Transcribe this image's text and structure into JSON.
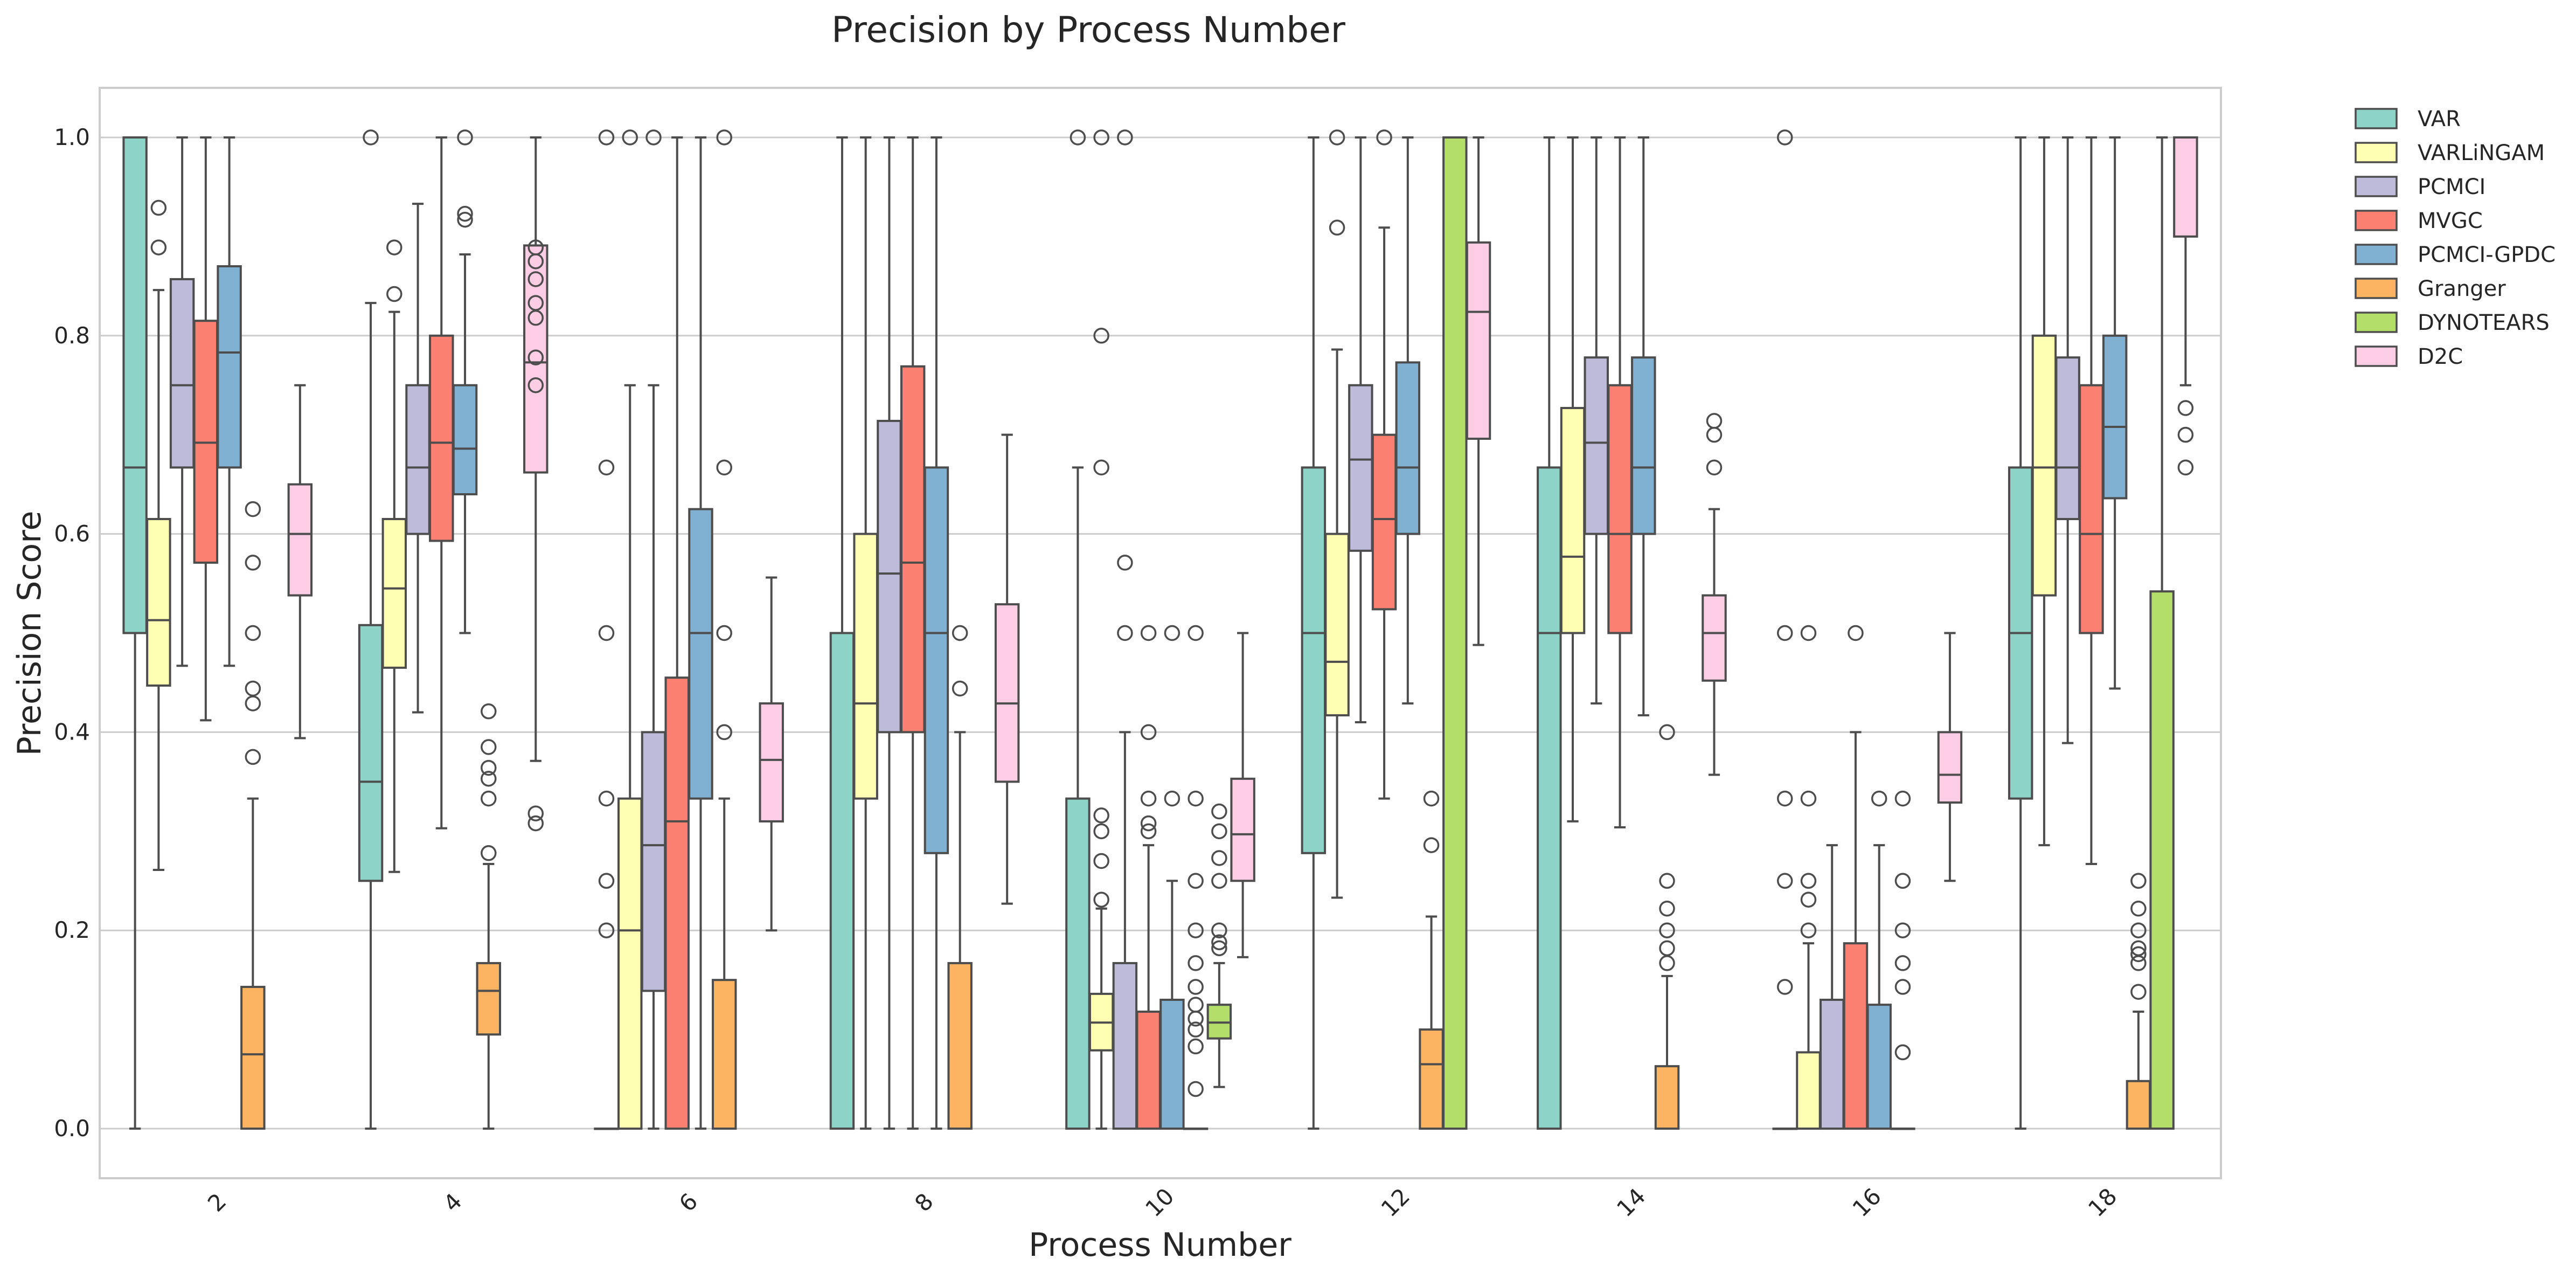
{
  "chart_data": {
    "type": "box",
    "title": "Precision by Process Number",
    "xlabel": "Process Number",
    "ylabel": "Precision Score",
    "ylim": [
      -0.05,
      1.05
    ],
    "yticks": [
      "0.0",
      "0.2",
      "0.4",
      "0.6",
      "0.8",
      "1.0"
    ],
    "categories": [
      "2",
      "4",
      "6",
      "8",
      "10",
      "12",
      "14",
      "16",
      "18"
    ],
    "grid": true,
    "legend_position": "outside-top-right",
    "series": [
      {
        "name": "VAR",
        "color": "#8dd3c7",
        "boxes": [
          {
            "cat": "2",
            "lw": 0,
            "q1": 0.5,
            "med": 0.667,
            "q3": 1.0,
            "uw": 1.0,
            "out": []
          },
          {
            "cat": "4",
            "lw": 0,
            "q1": 0.25,
            "med": 0.35,
            "q3": 0.508,
            "uw": 0.833,
            "out": [
              1.0
            ]
          },
          {
            "cat": "6",
            "lw": 0,
            "q1": 0,
            "med": 0,
            "q3": 0,
            "uw": 0,
            "out": [
              0.2,
              0.25,
              0.333,
              0.5,
              0.667,
              1.0
            ]
          },
          {
            "cat": "8",
            "lw": 0,
            "q1": 0,
            "med": 0,
            "q3": 0.5,
            "uw": 1.0,
            "out": []
          },
          {
            "cat": "10",
            "lw": 0,
            "q1": 0,
            "med": 0,
            "q3": 0.333,
            "uw": 0.667,
            "out": [
              1.0
            ]
          },
          {
            "cat": "12",
            "lw": 0,
            "q1": 0.278,
            "med": 0.5,
            "q3": 0.667,
            "uw": 1.0,
            "out": []
          },
          {
            "cat": "14",
            "lw": 0,
            "q1": 0,
            "med": 0.5,
            "q3": 0.667,
            "uw": 1.0,
            "out": []
          },
          {
            "cat": "16",
            "lw": 0,
            "q1": 0,
            "med": 0,
            "q3": 0,
            "uw": 0,
            "out": [
              0.143,
              0.25,
              0.333,
              0.5,
              1.0
            ]
          },
          {
            "cat": "18",
            "lw": 0,
            "q1": 0.333,
            "med": 0.5,
            "q3": 0.667,
            "uw": 1.0,
            "out": []
          }
        ]
      },
      {
        "name": "VARLiNGAM",
        "color": "#ffffb3",
        "boxes": [
          {
            "cat": "2",
            "lw": 0.261,
            "q1": 0.447,
            "med": 0.513,
            "q3": 0.615,
            "uw": 0.846,
            "out": [
              0.889,
              0.929
            ]
          },
          {
            "cat": "4",
            "lw": 0.259,
            "q1": 0.465,
            "med": 0.545,
            "q3": 0.615,
            "uw": 0.824,
            "out": [
              0.842,
              0.889
            ]
          },
          {
            "cat": "6",
            "lw": 0,
            "q1": 0,
            "med": 0.2,
            "q3": 0.333,
            "uw": 0.75,
            "out": [
              1.0
            ]
          },
          {
            "cat": "8",
            "lw": 0,
            "q1": 0.333,
            "med": 0.429,
            "q3": 0.6,
            "uw": 1.0,
            "out": []
          },
          {
            "cat": "10",
            "lw": 0.0,
            "q1": 0.079,
            "med": 0.107,
            "q3": 0.136,
            "uw": 0.222,
            "out": [
              0.231,
              0.27,
              0.3,
              0.316,
              0.667,
              0.8,
              1.0
            ]
          },
          {
            "cat": "12",
            "lw": 0.233,
            "q1": 0.417,
            "med": 0.471,
            "q3": 0.6,
            "uw": 0.786,
            "out": [
              0.909,
              1.0
            ]
          },
          {
            "cat": "14",
            "lw": 0.31,
            "q1": 0.5,
            "med": 0.577,
            "q3": 0.727,
            "uw": 1.0,
            "out": []
          },
          {
            "cat": "16",
            "lw": 0,
            "q1": 0,
            "med": 0,
            "q3": 0.077,
            "uw": 0.187,
            "out": [
              0.2,
              0.231,
              0.25,
              0.333,
              0.5
            ]
          },
          {
            "cat": "18",
            "lw": 0.286,
            "q1": 0.538,
            "med": 0.667,
            "q3": 0.8,
            "uw": 1.0,
            "out": []
          }
        ]
      },
      {
        "name": "PCMCI",
        "color": "#bebada",
        "boxes": [
          {
            "cat": "2",
            "lw": 0.467,
            "q1": 0.667,
            "med": 0.75,
            "q3": 0.857,
            "uw": 1.0,
            "out": []
          },
          {
            "cat": "4",
            "lw": 0.42,
            "q1": 0.6,
            "med": 0.667,
            "q3": 0.75,
            "uw": 0.933,
            "out": []
          },
          {
            "cat": "6",
            "lw": 0,
            "q1": 0.139,
            "med": 0.286,
            "q3": 0.4,
            "uw": 0.75,
            "out": [
              1.0
            ]
          },
          {
            "cat": "8",
            "lw": 0,
            "q1": 0.4,
            "med": 0.56,
            "q3": 0.714,
            "uw": 1.0,
            "out": []
          },
          {
            "cat": "10",
            "lw": 0,
            "q1": 0,
            "med": 0,
            "q3": 0.167,
            "uw": 0.4,
            "out": [
              0.5,
              0.571,
              1.0
            ]
          },
          {
            "cat": "12",
            "lw": 0.41,
            "q1": 0.583,
            "med": 0.675,
            "q3": 0.75,
            "uw": 1.0,
            "out": []
          },
          {
            "cat": "14",
            "lw": 0.429,
            "q1": 0.6,
            "med": 0.692,
            "q3": 0.778,
            "uw": 1.0,
            "out": []
          },
          {
            "cat": "16",
            "lw": 0,
            "q1": 0,
            "med": 0,
            "q3": 0.13,
            "uw": 0.286,
            "out": []
          },
          {
            "cat": "18",
            "lw": 0.389,
            "q1": 0.615,
            "med": 0.667,
            "q3": 0.778,
            "uw": 1.0,
            "out": []
          }
        ]
      },
      {
        "name": "MVGC",
        "color": "#fb8072",
        "boxes": [
          {
            "cat": "2",
            "lw": 0.412,
            "q1": 0.571,
            "med": 0.692,
            "q3": 0.815,
            "uw": 1.0,
            "out": []
          },
          {
            "cat": "4",
            "lw": 0.303,
            "q1": 0.593,
            "med": 0.692,
            "q3": 0.8,
            "uw": 1.0,
            "out": []
          },
          {
            "cat": "6",
            "lw": 0,
            "q1": 0,
            "med": 0.31,
            "q3": 0.455,
            "uw": 1.0,
            "out": []
          },
          {
            "cat": "8",
            "lw": 0,
            "q1": 0.4,
            "med": 0.571,
            "q3": 0.769,
            "uw": 1.0,
            "out": []
          },
          {
            "cat": "10",
            "lw": 0,
            "q1": 0,
            "med": 0,
            "q3": 0.118,
            "uw": 0.286,
            "out": [
              0.3,
              0.308,
              0.333,
              0.4,
              0.5
            ]
          },
          {
            "cat": "12",
            "lw": 0.333,
            "q1": 0.524,
            "med": 0.615,
            "q3": 0.7,
            "uw": 0.909,
            "out": [
              1.0
            ]
          },
          {
            "cat": "14",
            "lw": 0.304,
            "q1": 0.5,
            "med": 0.6,
            "q3": 0.75,
            "uw": 1.0,
            "out": []
          },
          {
            "cat": "16",
            "lw": 0,
            "q1": 0,
            "med": 0,
            "q3": 0.187,
            "uw": 0.4,
            "out": [
              0.5
            ]
          },
          {
            "cat": "18",
            "lw": 0.267,
            "q1": 0.5,
            "med": 0.6,
            "q3": 0.75,
            "uw": 1.0,
            "out": []
          }
        ]
      },
      {
        "name": "PCMCI-GPDC",
        "color": "#80b1d3",
        "boxes": [
          {
            "cat": "2",
            "lw": 0.467,
            "q1": 0.667,
            "med": 0.783,
            "q3": 0.87,
            "uw": 1.0,
            "out": []
          },
          {
            "cat": "4",
            "lw": 0.5,
            "q1": 0.64,
            "med": 0.686,
            "q3": 0.75,
            "uw": 0.882,
            "out": [
              0.917,
              0.923,
              1.0
            ]
          },
          {
            "cat": "6",
            "lw": 0,
            "q1": 0.333,
            "med": 0.5,
            "q3": 0.625,
            "uw": 1.0,
            "out": []
          },
          {
            "cat": "8",
            "lw": 0,
            "q1": 0.278,
            "med": 0.5,
            "q3": 0.667,
            "uw": 1.0,
            "out": []
          },
          {
            "cat": "10",
            "lw": 0,
            "q1": 0,
            "med": 0,
            "q3": 0.13,
            "uw": 0.25,
            "out": [
              0.333,
              0.5
            ]
          },
          {
            "cat": "12",
            "lw": 0.429,
            "q1": 0.6,
            "med": 0.667,
            "q3": 0.773,
            "uw": 1.0,
            "out": []
          },
          {
            "cat": "14",
            "lw": 0.417,
            "q1": 0.6,
            "med": 0.667,
            "q3": 0.778,
            "uw": 1.0,
            "out": []
          },
          {
            "cat": "16",
            "lw": 0,
            "q1": 0,
            "med": 0,
            "q3": 0.125,
            "uw": 0.286,
            "out": [
              0.333
            ]
          },
          {
            "cat": "18",
            "lw": 0.444,
            "q1": 0.636,
            "med": 0.708,
            "q3": 0.8,
            "uw": 1.0,
            "out": []
          }
        ]
      },
      {
        "name": "Granger",
        "color": "#fdb462",
        "boxes": [
          {
            "cat": "2",
            "lw": 0,
            "q1": 0,
            "med": 0.075,
            "q3": 0.143,
            "uw": 0.333,
            "out": [
              0.375,
              0.429,
              0.444,
              0.5,
              0.571,
              0.625
            ]
          },
          {
            "cat": "4",
            "lw": 0,
            "q1": 0.095,
            "med": 0.139,
            "q3": 0.167,
            "uw": 0.267,
            "out": [
              0.278,
              0.333,
              0.353,
              0.364,
              0.385,
              0.421
            ]
          },
          {
            "cat": "6",
            "lw": 0,
            "q1": 0,
            "med": 0,
            "q3": 0.15,
            "uw": 0.333,
            "out": [
              0.4,
              0.5,
              0.667,
              1.0
            ]
          },
          {
            "cat": "8",
            "lw": 0,
            "q1": 0,
            "med": 0,
            "q3": 0.167,
            "uw": 0.4,
            "out": [
              0.444,
              0.5
            ]
          },
          {
            "cat": "10",
            "lw": 0,
            "q1": 0,
            "med": 0,
            "q3": 0,
            "uw": 0,
            "out": [
              0.04,
              0.083,
              0.1,
              0.111,
              0.125,
              0.143,
              0.167,
              0.2,
              0.25,
              0.333,
              0.5
            ]
          },
          {
            "cat": "12",
            "lw": 0,
            "q1": 0,
            "med": 0.065,
            "q3": 0.1,
            "uw": 0.214,
            "out": [
              0.286,
              0.333
            ]
          },
          {
            "cat": "14",
            "lw": 0,
            "q1": 0,
            "med": 0,
            "q3": 0.063,
            "uw": 0.154,
            "out": [
              0.167,
              0.182,
              0.2,
              0.222,
              0.25,
              0.4
            ]
          },
          {
            "cat": "16",
            "lw": 0,
            "q1": 0,
            "med": 0,
            "q3": 0,
            "uw": 0,
            "out": [
              0.077,
              0.143,
              0.167,
              0.2,
              0.25,
              0.333
            ]
          },
          {
            "cat": "18",
            "lw": 0,
            "q1": 0,
            "med": 0,
            "q3": 0.048,
            "uw": 0.118,
            "out": [
              0.138,
              0.167,
              0.176,
              0.182,
              0.2,
              0.222,
              0.25
            ]
          }
        ]
      },
      {
        "name": "DYNOTEARS",
        "color": "#b3de69",
        "boxes": [
          {
            "cat": "2",
            "lw": null,
            "q1": null,
            "med": null,
            "q3": null,
            "uw": null,
            "out": []
          },
          {
            "cat": "4",
            "lw": null,
            "q1": null,
            "med": null,
            "q3": null,
            "uw": null,
            "out": []
          },
          {
            "cat": "6",
            "lw": null,
            "q1": null,
            "med": null,
            "q3": null,
            "uw": null,
            "out": []
          },
          {
            "cat": "8",
            "lw": null,
            "q1": null,
            "med": null,
            "q3": null,
            "uw": null,
            "out": []
          },
          {
            "cat": "10",
            "lw": 0.042,
            "q1": 0.091,
            "med": 0.107,
            "q3": 0.125,
            "uw": 0.167,
            "out": [
              0.182,
              0.188,
              0.2,
              0.25,
              0.273,
              0.3,
              0.32
            ]
          },
          {
            "cat": "12",
            "lw": 0,
            "q1": 0,
            "med": 1.0,
            "q3": 1.0,
            "uw": 1.0,
            "out": []
          },
          {
            "cat": "14",
            "lw": null,
            "q1": null,
            "med": null,
            "q3": null,
            "uw": null,
            "out": []
          },
          {
            "cat": "16",
            "lw": null,
            "q1": null,
            "med": null,
            "q3": null,
            "uw": null,
            "out": []
          },
          {
            "cat": "18",
            "lw": 0,
            "q1": 0,
            "med": 0,
            "q3": 0.542,
            "uw": 1.0,
            "out": []
          }
        ]
      },
      {
        "name": "D2C",
        "color": "#fccde5",
        "boxes": [
          {
            "cat": "2",
            "lw": 0.394,
            "q1": 0.538,
            "med": 0.6,
            "q3": 0.65,
            "uw": 0.75,
            "out": []
          },
          {
            "cat": "4",
            "lw": 0.371,
            "q1": 0.662,
            "med": 0.773,
            "q3": 0.891,
            "uw": 1.0,
            "out": [
              0.308,
              0.318,
              0.75,
              0.778,
              0.818,
              0.833,
              0.857,
              0.875,
              0.889
            ]
          },
          {
            "cat": "6",
            "lw": 0.2,
            "q1": 0.31,
            "med": 0.372,
            "q3": 0.429,
            "uw": 0.556,
            "out": []
          },
          {
            "cat": "8",
            "lw": 0.227,
            "q1": 0.35,
            "med": 0.429,
            "q3": 0.529,
            "uw": 0.7,
            "out": []
          },
          {
            "cat": "10",
            "lw": 0.173,
            "q1": 0.25,
            "med": 0.297,
            "q3": 0.353,
            "uw": 0.5,
            "out": []
          },
          {
            "cat": "12",
            "lw": 0.488,
            "q1": 0.696,
            "med": 0.824,
            "q3": 0.894,
            "uw": 1.0,
            "out": []
          },
          {
            "cat": "14",
            "lw": 0.357,
            "q1": 0.452,
            "med": 0.5,
            "q3": 0.538,
            "uw": 0.625,
            "out": [
              0.667,
              0.7,
              0.714
            ]
          },
          {
            "cat": "16",
            "lw": 0.25,
            "q1": 0.329,
            "med": 0.357,
            "q3": 0.4,
            "uw": 0.5,
            "out": []
          },
          {
            "cat": "18",
            "lw": 0.75,
            "q1": 0.9,
            "med": 1.0,
            "q3": 1.0,
            "uw": 1.0,
            "out": [
              0.667,
              0.7,
              0.727
            ]
          }
        ]
      }
    ]
  }
}
